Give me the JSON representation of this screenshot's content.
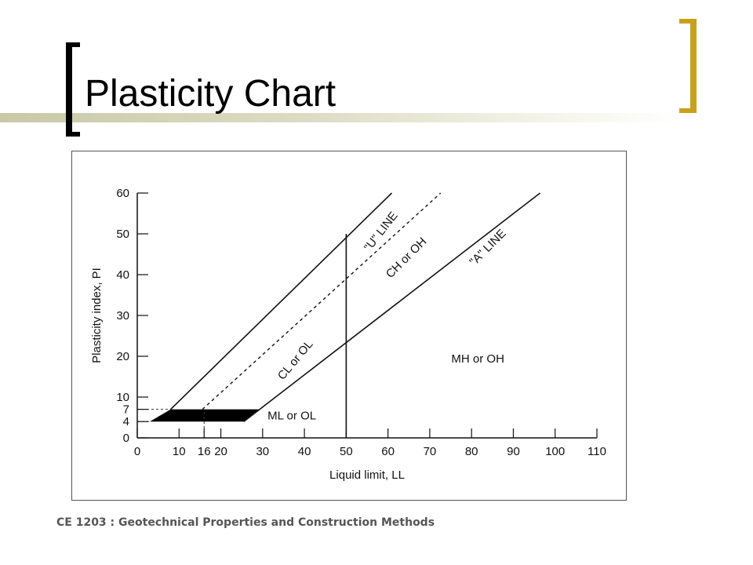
{
  "slide": {
    "title": "Plasticity Chart",
    "footer": "CE 1203 : Geotechnical Properties and Construction Methods"
  },
  "colors": {
    "accent_gold": "#c9a01a",
    "bracket_black": "#000000",
    "accent_bar": "#c9c9a8"
  },
  "chart_data": {
    "type": "line",
    "title": "",
    "xlabel": "Liquid limit, LL",
    "ylabel": "Plasticity index, PI",
    "xlim": [
      0,
      110
    ],
    "ylim": [
      0,
      60
    ],
    "xticks": [
      0,
      10,
      16,
      20,
      30,
      40,
      50,
      60,
      70,
      80,
      90,
      100,
      110
    ],
    "yticks": [
      0,
      4,
      7,
      10,
      20,
      30,
      40,
      50,
      60
    ],
    "grid": false,
    "series": [
      {
        "name": "\"U\" LINE",
        "style": "solid",
        "x": [
          8,
          60.9
        ],
        "y": [
          7,
          60
        ]
      },
      {
        "name": "\"A\" LINE",
        "style": "solid",
        "x": [
          25.5,
          96.4
        ],
        "y": [
          4,
          60
        ]
      },
      {
        "name": "",
        "style": "dotted",
        "x": [
          15.6,
          72.6
        ],
        "y": [
          7,
          60
        ]
      },
      {
        "name": "LL = 50",
        "style": "solid",
        "x": [
          50,
          50
        ],
        "y": [
          0,
          50
        ]
      }
    ],
    "shaded_band": {
      "polygon_x": [
        3,
        8,
        29.3,
        25.5
      ],
      "polygon_y": [
        4,
        7,
        7,
        4
      ]
    },
    "reference_dashes": [
      {
        "x": [
          0,
          8
        ],
        "y": [
          7,
          7
        ]
      },
      {
        "x": [
          0,
          3
        ],
        "y": [
          4,
          4
        ]
      },
      {
        "x": [
          16,
          16
        ],
        "y": [
          0,
          7
        ]
      }
    ],
    "annotations": [
      {
        "text": "\"U\" LINE",
        "x": 59,
        "y": 50,
        "angle": -52
      },
      {
        "text": "CH or OH",
        "x": 65,
        "y": 43.5,
        "angle": -45
      },
      {
        "text": "\"A\" LINE",
        "x": 84.5,
        "y": 46,
        "angle": -45
      },
      {
        "text": "CL or OL",
        "x": 38.5,
        "y": 18.5,
        "angle": -50
      },
      {
        "text": "MH or OH",
        "x": 81.5,
        "y": 18.5,
        "angle": 0
      },
      {
        "text": "ML or OL",
        "x": 37,
        "y": 4.5,
        "angle": 0
      }
    ]
  }
}
